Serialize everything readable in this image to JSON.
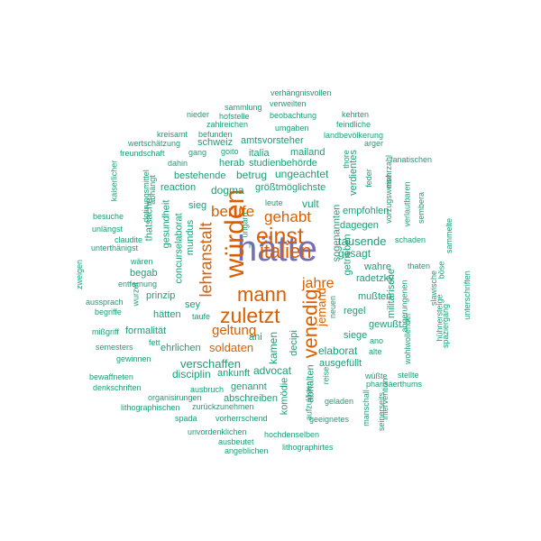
{
  "colors": {
    "teal": "#1b9e77",
    "orange": "#d95f02",
    "purple": "#7570b3",
    "background": "#ffffff"
  },
  "words": [
    "hätte",
    "würden",
    "einst",
    "italien",
    "mann",
    "zuletzt",
    "venedig",
    "gehabt",
    "berufe",
    "lehranstalt",
    "jahre",
    "geltung",
    "soldaten",
    "jemand",
    "verhängnisvollen",
    "sammlung",
    "verweilten",
    "nieder",
    "hofstelle",
    "beobachtung",
    "kehrten",
    "zahlreichen",
    "feindliche",
    "kreisamt",
    "befunden",
    "umgaben",
    "landbevölkerung",
    "wertschätzung",
    "schweiz",
    "amtsvorsteher",
    "arger",
    "gang",
    "goito",
    "freundschaft",
    "italia",
    "mailand",
    "thore",
    "dahin",
    "herab",
    "studienbehörde",
    "ungeachtet",
    "fanatischen",
    "bestehende",
    "betrug",
    "feder",
    "mehrzahl",
    "reaction",
    "dogma",
    "größtmöglichste",
    "vorzugsweise",
    "verlautbaren",
    "sembera",
    "sieg",
    "leute",
    "vult",
    "empfohlen",
    "dagegen",
    "ungarn",
    "besuche",
    "unlängst",
    "claudite",
    "unterthänigst",
    "concurselaborat",
    "gesundheit",
    "thatsache",
    "abhängt",
    "dotirungsmittel",
    "kaiserlicher",
    "mundus",
    "tausende",
    "gesagt",
    "schaden",
    "sammelte",
    "wären",
    "entfernung",
    "begab",
    "zweigen",
    "aussprach",
    "begriffe",
    "wahre",
    "thaten",
    "böse",
    "radetzky",
    "slawische",
    "mußten",
    "prinzip",
    "taufe",
    "hätten",
    "sey",
    "abgerungenen",
    "gewußt",
    "hühnersteige",
    "unterschriften",
    "spaziergang",
    "mißgriff",
    "formalität",
    "siege",
    "wohlwollender",
    "regel",
    "semesters",
    "fett",
    "ehrlichen",
    "kamen",
    "ani",
    "decipi",
    "ano",
    "elaborat",
    "gewinnen",
    "verschaffen",
    "ausgefüllt",
    "bewaffneten",
    "disciplin",
    "ankunft",
    "advocat",
    "alte",
    "stellte",
    "denkschriften",
    "ausbruch",
    "genannt",
    "pharisäerthums",
    "organisirungen",
    "abschreiben",
    "geladen",
    "lithographischen",
    "zurückzunehmen",
    "spada",
    "vorherrschend",
    "geeignetes",
    "unvordenklichen",
    "hochdenselben",
    "ausbeutet",
    "angeblichen",
    "lithographirtes",
    "verdientes",
    "getrieben",
    "sogenannten",
    "neuen",
    "militärische",
    "wüßte",
    "reise",
    "abhalten",
    "aufzulösen",
    "komödie",
    "manschall",
    "seinerseits",
    "intervention",
    "wurzel",
    "n"
  ]
}
